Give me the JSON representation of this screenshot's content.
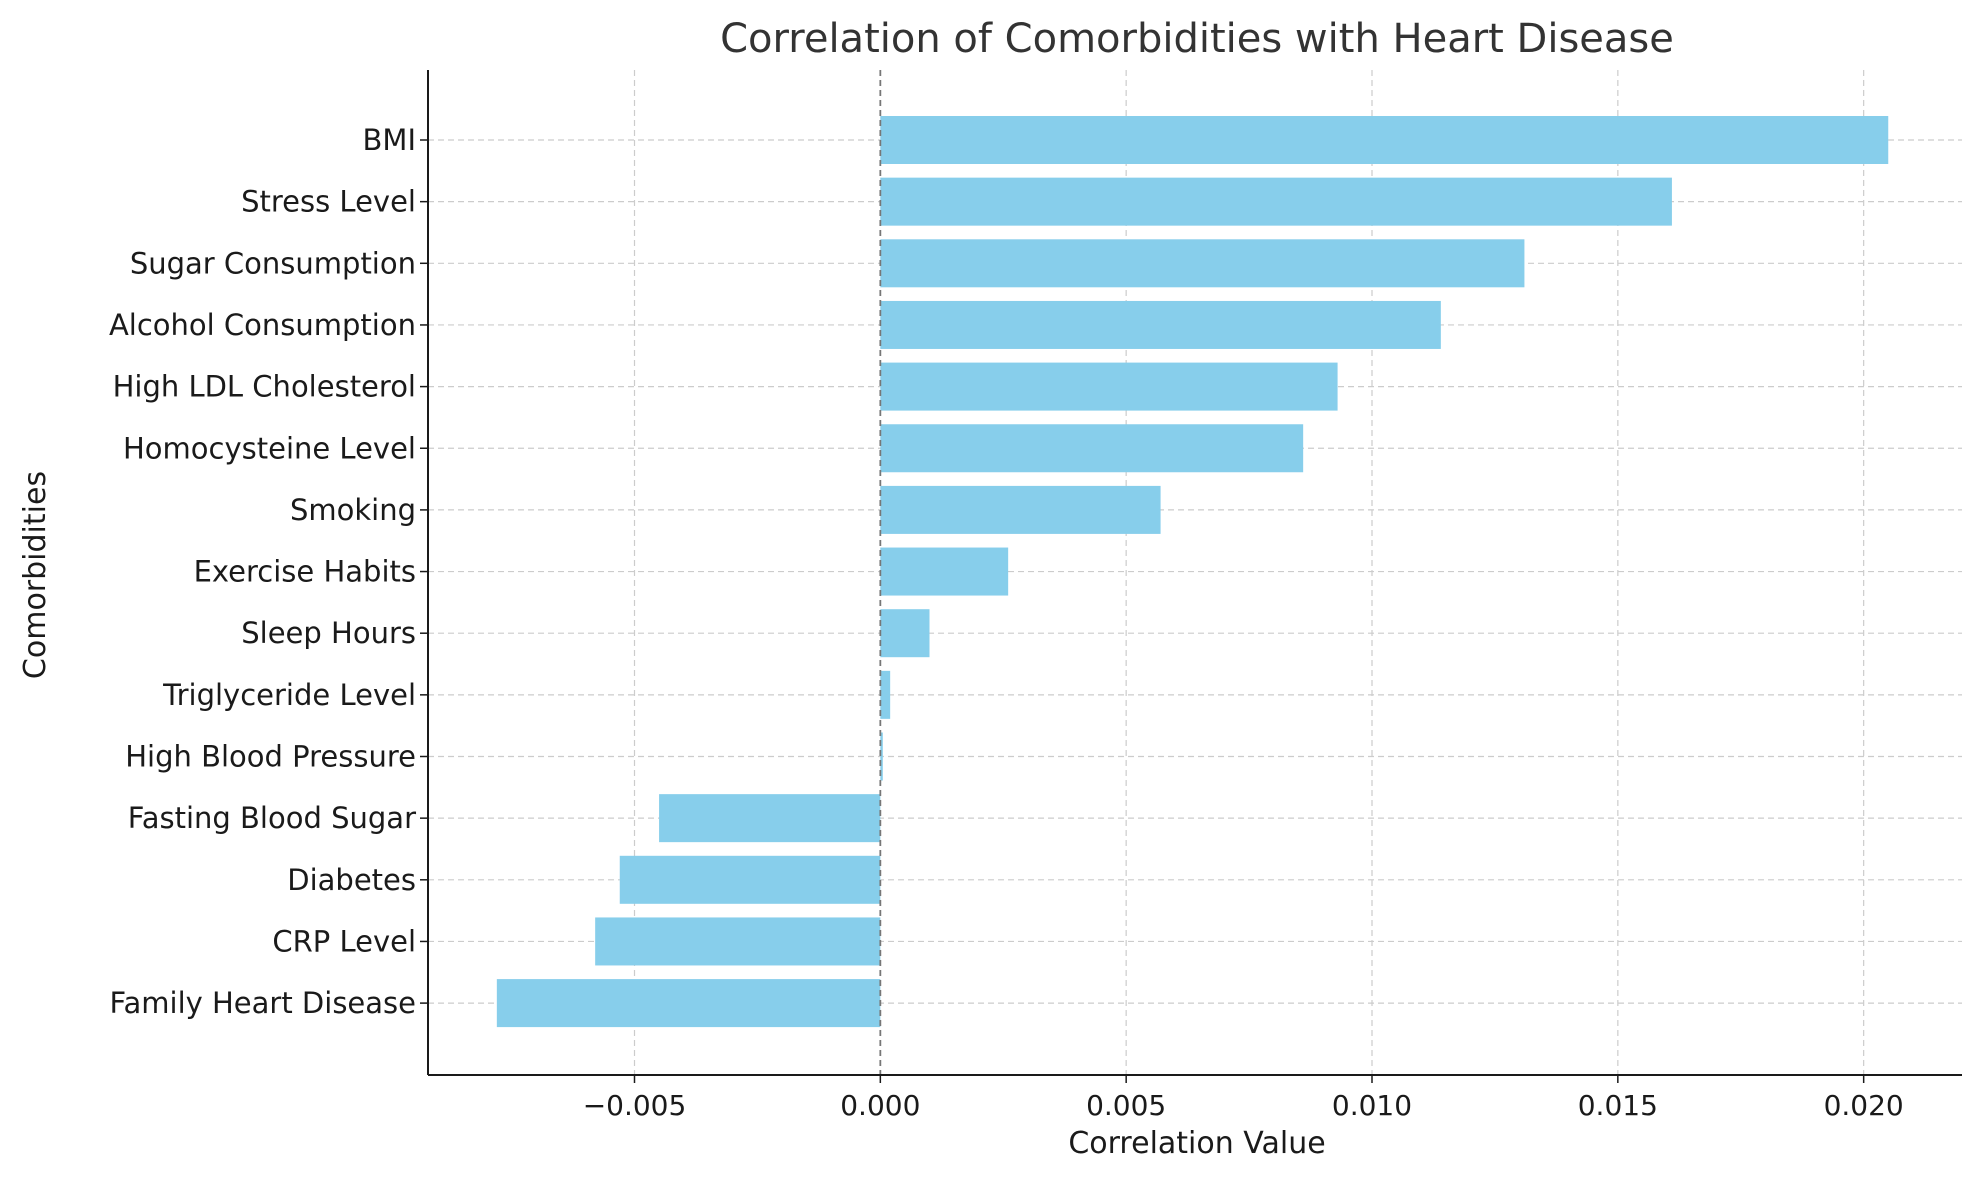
{
  "chart_data": {
    "type": "bar",
    "orientation": "horizontal",
    "title": "Correlation of Comorbidities with Heart Disease",
    "xlabel": "Correlation Value",
    "ylabel": "Comorbidities",
    "categories": [
      "BMI",
      "Stress Level",
      "Sugar Consumption",
      "Alcohol Consumption",
      "High LDL Cholesterol",
      "Homocysteine Level",
      "Smoking",
      "Exercise Habits",
      "Sleep Hours",
      "Triglyceride Level",
      "High Blood Pressure",
      "Fasting Blood Sugar",
      "Diabetes",
      "CRP Level",
      "Family Heart Disease"
    ],
    "values": [
      0.0205,
      0.0161,
      0.0131,
      0.0114,
      0.0093,
      0.0086,
      0.0057,
      0.0026,
      0.001,
      0.0002,
      5e-05,
      -0.0045,
      -0.0053,
      -0.0058,
      -0.0078
    ],
    "xlim": [
      -0.0092,
      0.022
    ],
    "xticks": [
      -0.005,
      0.0,
      0.005,
      0.01,
      0.015,
      0.02
    ],
    "xtick_labels": [
      "−0.005",
      "0.000",
      "0.005",
      "0.010",
      "0.015",
      "0.020"
    ],
    "grid": true,
    "grid_style": "dashed",
    "zero_line": true,
    "bar_color": "#87ceeb",
    "legend": "none"
  }
}
